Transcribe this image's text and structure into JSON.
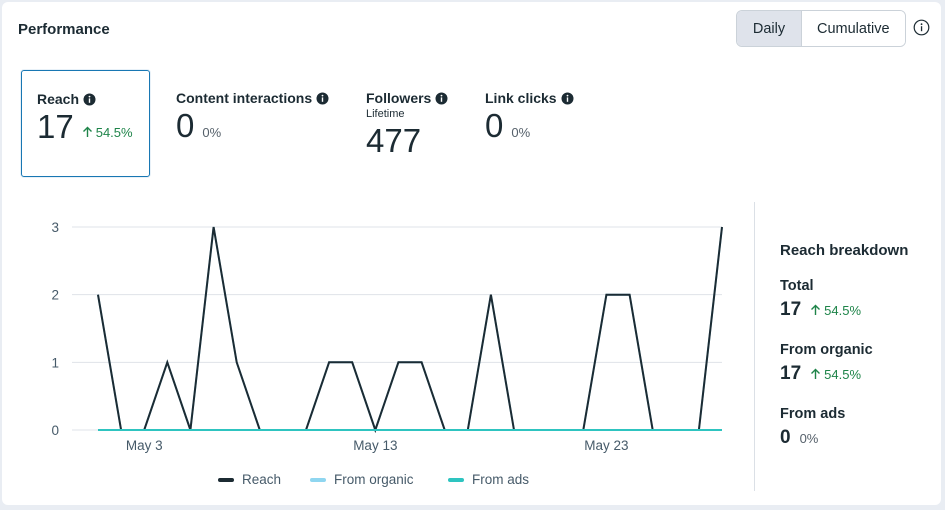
{
  "header": {
    "title": "Performance",
    "toggle_daily": "Daily",
    "toggle_cumulative": "Cumulative"
  },
  "metrics": [
    {
      "label": "Reach",
      "sublabel": "",
      "value": "17",
      "change": "54.5%",
      "trend": "up"
    },
    {
      "label": "Content interactions",
      "sublabel": "",
      "value": "0",
      "change": "0%",
      "trend": "none"
    },
    {
      "label": "Followers",
      "sublabel": "Lifetime",
      "value": "477",
      "change": "",
      "trend": "none"
    },
    {
      "label": "Link clicks",
      "sublabel": "",
      "value": "0",
      "change": "0%",
      "trend": "none"
    }
  ],
  "breakdown": {
    "title": "Reach breakdown",
    "total_label": "Total",
    "total_value": "17",
    "total_change": "54.5%",
    "organic_label": "From organic",
    "organic_value": "17",
    "organic_change": "54.5%",
    "ads_label": "From ads",
    "ads_value": "0",
    "ads_change": "0%"
  },
  "legend": {
    "reach": "Reach",
    "organic": "From organic",
    "ads": "From ads"
  },
  "colors": {
    "reach": "#1c2b33",
    "organic": "#8fd6f0",
    "ads": "#2ec4c0",
    "positive": "#1e8449",
    "accent": "#1877b3"
  },
  "chart_data": {
    "type": "line",
    "x": [
      "May 1",
      "May 2",
      "May 3",
      "May 4",
      "May 5",
      "May 6",
      "May 7",
      "May 8",
      "May 9",
      "May 10",
      "May 11",
      "May 12",
      "May 13",
      "May 14",
      "May 15",
      "May 16",
      "May 17",
      "May 18",
      "May 19",
      "May 20",
      "May 21",
      "May 22",
      "May 23",
      "May 24",
      "May 25",
      "May 26",
      "May 27",
      "May 28"
    ],
    "xtick_labels": [
      "May 3",
      "May 13",
      "May 23"
    ],
    "series": [
      {
        "name": "Reach",
        "values": [
          2,
          0,
          0,
          1,
          0,
          3,
          1,
          0,
          0,
          0,
          1,
          1,
          0,
          1,
          1,
          0,
          0,
          2,
          0,
          0,
          0,
          0,
          2,
          2,
          0,
          0,
          0,
          3
        ]
      },
      {
        "name": "From organic",
        "values": [
          2,
          0,
          0,
          1,
          0,
          3,
          1,
          0,
          0,
          0,
          1,
          1,
          0,
          1,
          1,
          0,
          0,
          2,
          0,
          0,
          0,
          0,
          2,
          2,
          0,
          0,
          0,
          3
        ]
      },
      {
        "name": "From ads",
        "values": [
          0,
          0,
          0,
          0,
          0,
          0,
          0,
          0,
          0,
          0,
          0,
          0,
          0,
          0,
          0,
          0,
          0,
          0,
          0,
          0,
          0,
          0,
          0,
          0,
          0,
          0,
          0,
          0
        ]
      }
    ],
    "ylim": [
      0,
      3
    ],
    "yticks": [
      0,
      1,
      2,
      3
    ],
    "xlabel": "",
    "ylabel": "",
    "grid": true,
    "legend_position": "bottom"
  }
}
